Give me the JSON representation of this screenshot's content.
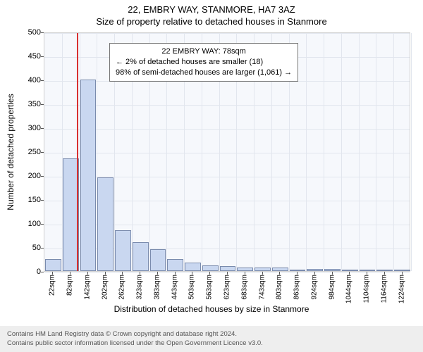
{
  "titles": {
    "address": "22, EMBRY WAY, STANMORE, HA7 3AZ",
    "subtitle": "Size of property relative to detached houses in Stanmore"
  },
  "axes": {
    "ylabel": "Number of detached properties",
    "xlabel": "Distribution of detached houses by size in Stanmore",
    "ylim": [
      0,
      500
    ],
    "ytick_step": 50,
    "yticks": [
      0,
      50,
      100,
      150,
      200,
      250,
      300,
      350,
      400,
      450,
      500
    ],
    "xticks_labels": [
      "22sqm",
      "82sqm",
      "142sqm",
      "202sqm",
      "262sqm",
      "323sqm",
      "383sqm",
      "443sqm",
      "503sqm",
      "563sqm",
      "623sqm",
      "683sqm",
      "743sqm",
      "803sqm",
      "863sqm",
      "924sqm",
      "984sqm",
      "1044sqm",
      "1104sqm",
      "1164sqm",
      "1224sqm"
    ],
    "label_fontsize": 12,
    "tick_fontsize": 11,
    "tick_fontsize_x": 10
  },
  "chart": {
    "type": "histogram",
    "plot_background": "#f6f8fc",
    "grid_color": "#e2e6ee",
    "border_color": "#cfcfcf",
    "bar_fill": "#c9d7f0",
    "bar_border": "#7a8bad",
    "marker_color": "#d93030",
    "marker_position_index": 1.85,
    "n_bars": 21,
    "values": [
      25,
      235,
      400,
      195,
      85,
      60,
      45,
      25,
      18,
      12,
      10,
      8,
      7,
      8,
      3,
      5,
      4,
      2,
      2,
      2,
      2
    ]
  },
  "annotation": {
    "line1": "22 EMBRY WAY: 78sqm",
    "line2": "← 2% of detached houses are smaller (18)",
    "line3": "98% of semi-detached houses are larger (1,061) →",
    "background": "#ffffff",
    "border": "#777777",
    "fontsize": 11
  },
  "footer": {
    "line1": "Contains HM Land Registry data © Crown copyright and database right 2024.",
    "line2": "Contains public sector information licensed under the Open Government Licence v3.0.",
    "background": "#eeeeee",
    "text_color": "#555555",
    "fontsize": 9.5
  }
}
